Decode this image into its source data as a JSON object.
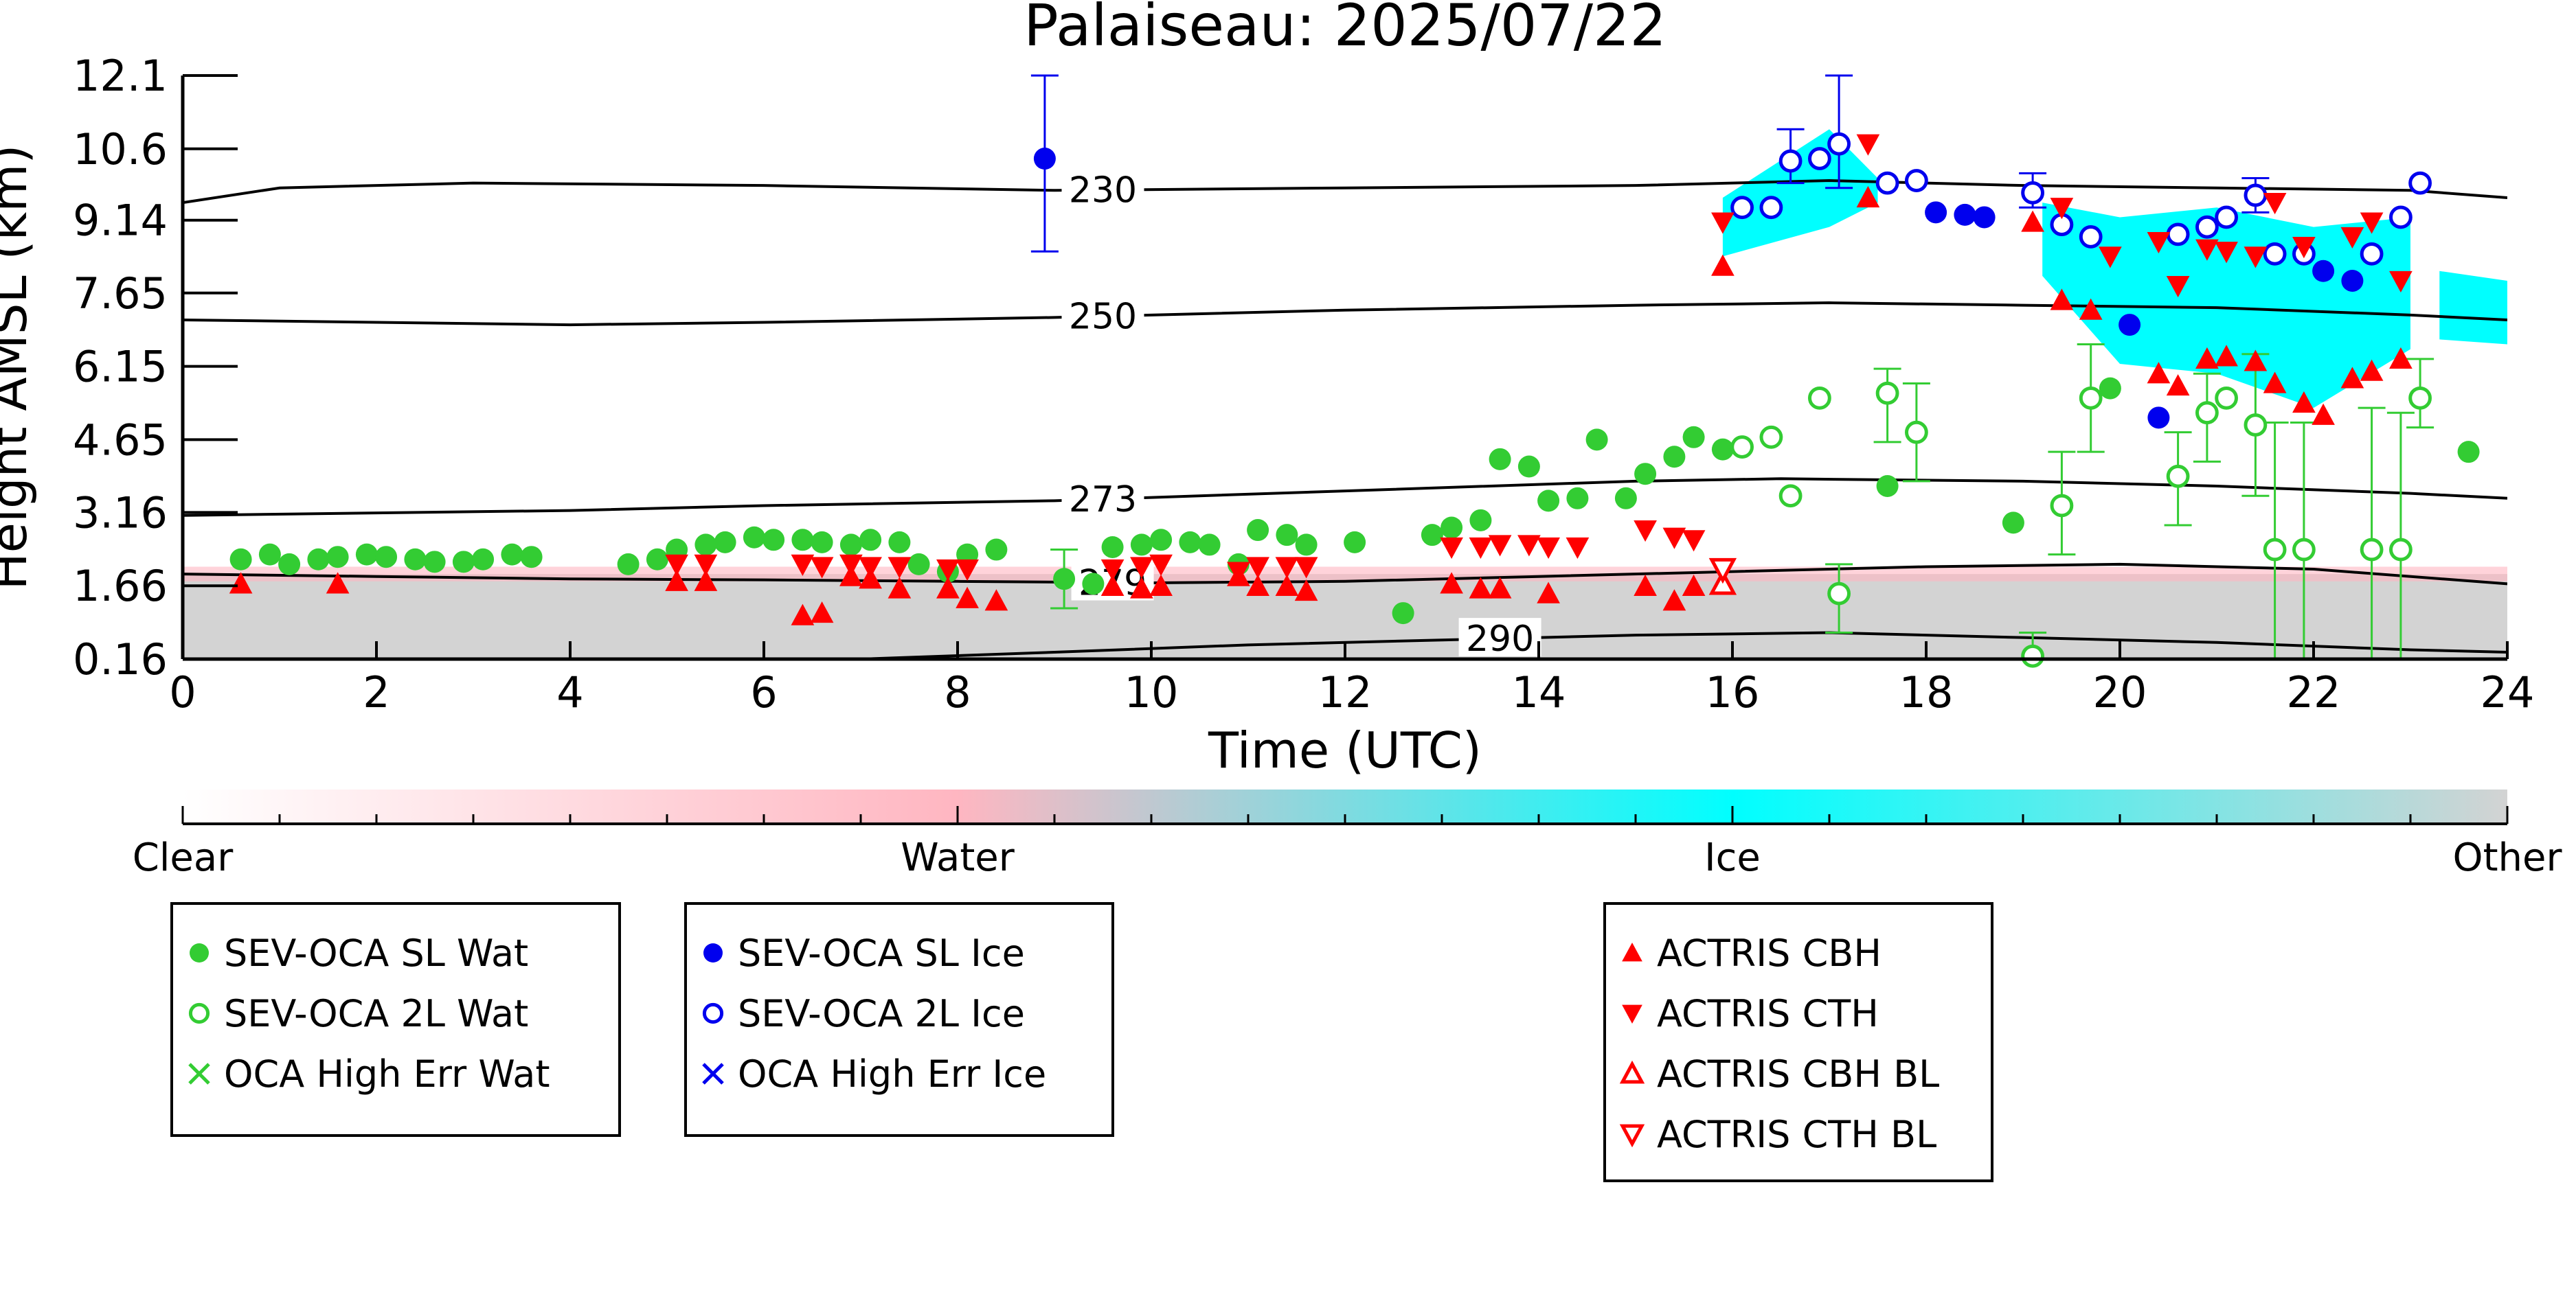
{
  "chart_data": {
    "type": "scatter",
    "title": "Palaiseau: 2025/07/22",
    "xlabel": "Time (UTC)",
    "ylabel": "Height AMSL (km)",
    "xlim": [
      0,
      24
    ],
    "ylim": [
      0.16,
      12.1
    ],
    "x_ticks": [
      "0",
      "2",
      "4",
      "6",
      "8",
      "10",
      "12",
      "14",
      "16",
      "18",
      "20",
      "22",
      "24"
    ],
    "y_ticks": [
      "0.16",
      "1.66",
      "3.16",
      "4.65",
      "6.15",
      "7.65",
      "9.14",
      "10.6",
      "12.1"
    ],
    "grid": false,
    "background_field": {
      "description_colors": {
        "clear": "#ffffff",
        "water": "#ffb6c1",
        "ice": "#00ffff",
        "other": "#d3d3d3"
      },
      "other_layer": {
        "x": [
          0,
          24
        ],
        "top": [
          1.9,
          1.9
        ]
      },
      "ice_regions": [
        {
          "x": [
            15.9,
            17.0,
            17.5
          ],
          "top": [
            9.6,
            11.0,
            10.0
          ],
          "bottom": [
            8.4,
            9.0,
            9.5
          ]
        },
        {
          "x": [
            19.2,
            20.0,
            21.0,
            22.0,
            23.0
          ],
          "top": [
            9.5,
            9.2,
            9.4,
            9.0,
            9.2
          ],
          "bottom": [
            8.0,
            6.2,
            6.0,
            5.3,
            6.5
          ]
        },
        {
          "x": [
            23.3,
            24.0
          ],
          "top": [
            8.1,
            7.9
          ],
          "bottom": [
            6.7,
            6.6
          ]
        }
      ]
    },
    "contours": [
      {
        "label": "230",
        "label_x": 9.5,
        "x": [
          0,
          1,
          3,
          6,
          9,
          12,
          15,
          17,
          19,
          21,
          23,
          24
        ],
        "y": [
          9.5,
          9.8,
          9.9,
          9.85,
          9.75,
          9.8,
          9.85,
          9.95,
          9.85,
          9.8,
          9.75,
          9.6
        ]
      },
      {
        "label": "250",
        "label_x": 9.5,
        "x": [
          0,
          2,
          4,
          6,
          9,
          12,
          15,
          17,
          19,
          21,
          23,
          24
        ],
        "y": [
          7.1,
          7.05,
          7.0,
          7.05,
          7.15,
          7.3,
          7.4,
          7.45,
          7.4,
          7.35,
          7.2,
          7.1
        ]
      },
      {
        "label": "273",
        "label_x": 9.5,
        "x": [
          0,
          2,
          4,
          6,
          9,
          12,
          15,
          16.5,
          19,
          21,
          23,
          24
        ],
        "y": [
          3.1,
          3.15,
          3.2,
          3.3,
          3.4,
          3.6,
          3.8,
          3.85,
          3.8,
          3.7,
          3.55,
          3.45
        ]
      },
      {
        "label": "279",
        "label_x": 9.6,
        "x": [
          0,
          2,
          4,
          6,
          8,
          10,
          12,
          14,
          16,
          18,
          20,
          22,
          24
        ],
        "y": [
          1.9,
          1.85,
          1.8,
          1.78,
          1.75,
          1.72,
          1.75,
          1.85,
          1.95,
          2.05,
          2.1,
          2.0,
          1.7
        ]
      },
      {
        "label": "290",
        "label_x": 13.6,
        "x": [
          7.0,
          9,
          11,
          13,
          15,
          17,
          19,
          21,
          23,
          24
        ],
        "y": [
          0.16,
          0.3,
          0.45,
          0.55,
          0.65,
          0.7,
          0.6,
          0.5,
          0.35,
          0.3
        ]
      }
    ],
    "series": [
      {
        "name": "SEV-OCA SL Wat",
        "marker": "circle-filled",
        "color": "#33cc33",
        "points": [
          [
            0.6,
            2.2
          ],
          [
            0.9,
            2.3
          ],
          [
            1.1,
            2.1
          ],
          [
            1.4,
            2.2
          ],
          [
            1.6,
            2.25
          ],
          [
            1.9,
            2.3
          ],
          [
            2.1,
            2.25
          ],
          [
            2.4,
            2.2
          ],
          [
            2.6,
            2.15
          ],
          [
            2.9,
            2.15
          ],
          [
            3.1,
            2.2
          ],
          [
            3.4,
            2.3
          ],
          [
            3.6,
            2.25
          ],
          [
            4.6,
            2.1
          ],
          [
            4.9,
            2.2
          ],
          [
            5.1,
            2.4
          ],
          [
            5.4,
            2.5
          ],
          [
            5.6,
            2.55
          ],
          [
            5.9,
            2.65
          ],
          [
            6.1,
            2.6
          ],
          [
            6.4,
            2.6
          ],
          [
            6.6,
            2.55
          ],
          [
            6.9,
            2.5
          ],
          [
            7.1,
            2.6
          ],
          [
            7.4,
            2.55
          ],
          [
            7.6,
            2.1
          ],
          [
            7.9,
            1.95
          ],
          [
            8.1,
            2.3
          ],
          [
            8.4,
            2.4
          ],
          [
            9.1,
            1.8
          ],
          [
            9.4,
            1.7
          ],
          [
            9.6,
            2.45
          ],
          [
            9.9,
            2.5
          ],
          [
            10.1,
            2.6
          ],
          [
            10.4,
            2.55
          ],
          [
            10.6,
            2.5
          ],
          [
            10.9,
            2.1
          ],
          [
            11.1,
            2.8
          ],
          [
            11.4,
            2.7
          ],
          [
            11.6,
            2.5
          ],
          [
            12.1,
            2.55
          ],
          [
            12.6,
            1.1
          ],
          [
            12.9,
            2.7
          ],
          [
            13.1,
            2.85
          ],
          [
            13.4,
            3.0
          ],
          [
            13.6,
            4.25
          ],
          [
            13.9,
            4.1
          ],
          [
            14.1,
            3.4
          ],
          [
            14.4,
            3.45
          ],
          [
            14.6,
            4.65
          ],
          [
            14.9,
            3.45
          ],
          [
            15.1,
            3.95
          ],
          [
            15.4,
            4.3
          ],
          [
            15.6,
            4.7
          ],
          [
            15.9,
            4.45
          ],
          [
            17.6,
            3.7
          ],
          [
            18.9,
            2.95
          ],
          [
            19.9,
            5.7
          ],
          [
            23.6,
            4.4
          ]
        ]
      },
      {
        "name": "SEV-OCA 2L Wat",
        "marker": "circle-open",
        "color": "#33cc33",
        "points": [
          [
            16.1,
            4.5
          ],
          [
            16.4,
            4.7
          ],
          [
            16.6,
            3.5
          ],
          [
            16.9,
            5.5
          ],
          [
            17.1,
            1.5
          ],
          [
            17.6,
            5.6
          ],
          [
            17.9,
            4.8
          ],
          [
            19.1,
            0.22
          ],
          [
            19.4,
            3.3
          ],
          [
            19.7,
            5.5
          ],
          [
            20.6,
            3.9
          ],
          [
            20.9,
            5.2
          ],
          [
            21.1,
            5.5
          ],
          [
            21.4,
            4.95
          ],
          [
            21.6,
            2.4
          ],
          [
            21.9,
            2.4
          ],
          [
            22.6,
            2.4
          ],
          [
            22.9,
            2.4
          ],
          [
            23.1,
            5.5
          ]
        ]
      },
      {
        "name": "OCA High Err Wat",
        "marker": "cross",
        "color": "#33cc33",
        "points": []
      },
      {
        "name": "SEV-OCA SL Ice",
        "marker": "circle-filled",
        "color": "#0000ee",
        "points": [
          [
            8.9,
            10.4
          ],
          [
            18.1,
            9.3
          ],
          [
            18.4,
            9.25
          ],
          [
            18.6,
            9.2
          ],
          [
            20.1,
            7.0
          ],
          [
            20.4,
            5.1
          ],
          [
            22.1,
            8.1
          ],
          [
            22.4,
            7.9
          ]
        ]
      },
      {
        "name": "SEV-OCA 2L Ice",
        "marker": "circle-open",
        "color": "#0000ee",
        "points": [
          [
            16.1,
            9.4
          ],
          [
            16.4,
            9.4
          ],
          [
            16.6,
            10.35
          ],
          [
            16.9,
            10.4
          ],
          [
            17.1,
            10.7
          ],
          [
            17.6,
            9.9
          ],
          [
            17.9,
            9.95
          ],
          [
            19.1,
            9.7
          ],
          [
            19.4,
            9.05
          ],
          [
            19.7,
            8.8
          ],
          [
            20.6,
            8.85
          ],
          [
            20.9,
            9.0
          ],
          [
            21.1,
            9.2
          ],
          [
            21.4,
            9.65
          ],
          [
            21.6,
            8.45
          ],
          [
            21.9,
            8.45
          ],
          [
            22.6,
            8.45
          ],
          [
            22.9,
            9.2
          ],
          [
            23.1,
            9.9
          ]
        ]
      },
      {
        "name": "OCA High Err Ice",
        "marker": "cross",
        "color": "#0000ee",
        "points": []
      },
      {
        "name": "ACTRIS CBH",
        "marker": "triangle-up-filled",
        "color": "#ff0000",
        "points": [
          [
            0.6,
            1.7
          ],
          [
            1.6,
            1.7
          ],
          [
            5.1,
            1.75
          ],
          [
            5.4,
            1.75
          ],
          [
            6.4,
            1.05
          ],
          [
            6.6,
            1.1
          ],
          [
            6.9,
            1.85
          ],
          [
            7.1,
            1.8
          ],
          [
            7.4,
            1.6
          ],
          [
            7.9,
            1.6
          ],
          [
            8.1,
            1.4
          ],
          [
            8.4,
            1.35
          ],
          [
            9.6,
            1.65
          ],
          [
            9.9,
            1.6
          ],
          [
            10.1,
            1.65
          ],
          [
            10.9,
            1.85
          ],
          [
            11.1,
            1.65
          ],
          [
            11.4,
            1.65
          ],
          [
            11.6,
            1.55
          ],
          [
            13.1,
            1.7
          ],
          [
            13.4,
            1.6
          ],
          [
            13.6,
            1.6
          ],
          [
            14.1,
            1.5
          ],
          [
            15.1,
            1.65
          ],
          [
            15.4,
            1.35
          ],
          [
            15.6,
            1.65
          ],
          [
            15.9,
            8.2
          ],
          [
            17.4,
            9.6
          ],
          [
            19.1,
            9.1
          ],
          [
            19.4,
            7.5
          ],
          [
            19.7,
            7.3
          ],
          [
            20.4,
            6.0
          ],
          [
            20.6,
            5.75
          ],
          [
            20.9,
            6.3
          ],
          [
            21.1,
            6.35
          ],
          [
            21.4,
            6.25
          ],
          [
            21.6,
            5.8
          ],
          [
            21.9,
            5.4
          ],
          [
            22.1,
            5.15
          ],
          [
            22.4,
            5.9
          ],
          [
            22.6,
            6.05
          ],
          [
            22.9,
            6.3
          ]
        ]
      },
      {
        "name": "ACTRIS CTH",
        "marker": "triangle-down-filled",
        "color": "#ff0000",
        "points": [
          [
            5.1,
            2.1
          ],
          [
            5.4,
            2.1
          ],
          [
            6.4,
            2.1
          ],
          [
            6.6,
            2.05
          ],
          [
            6.9,
            2.1
          ],
          [
            7.1,
            2.05
          ],
          [
            7.4,
            2.05
          ],
          [
            7.9,
            2.0
          ],
          [
            8.1,
            2.0
          ],
          [
            9.6,
            2.0
          ],
          [
            9.9,
            2.05
          ],
          [
            10.1,
            2.1
          ],
          [
            10.9,
            1.95
          ],
          [
            11.1,
            2.05
          ],
          [
            11.4,
            2.05
          ],
          [
            11.6,
            2.05
          ],
          [
            13.1,
            2.45
          ],
          [
            13.4,
            2.45
          ],
          [
            13.6,
            2.5
          ],
          [
            13.9,
            2.5
          ],
          [
            14.1,
            2.45
          ],
          [
            14.4,
            2.45
          ],
          [
            15.1,
            2.8
          ],
          [
            15.4,
            2.65
          ],
          [
            15.6,
            2.6
          ],
          [
            15.9,
            9.1
          ],
          [
            17.4,
            10.7
          ],
          [
            19.4,
            9.4
          ],
          [
            19.9,
            8.4
          ],
          [
            20.4,
            8.7
          ],
          [
            20.6,
            7.8
          ],
          [
            20.9,
            8.55
          ],
          [
            21.1,
            8.5
          ],
          [
            21.4,
            8.4
          ],
          [
            21.6,
            9.5
          ],
          [
            21.9,
            8.6
          ],
          [
            22.4,
            8.8
          ],
          [
            22.6,
            9.1
          ],
          [
            22.9,
            7.9
          ]
        ]
      },
      {
        "name": "ACTRIS CBH BL",
        "marker": "triangle-up-open",
        "color": "#ff0000",
        "points": [
          [
            15.9,
            1.7
          ]
        ]
      },
      {
        "name": "ACTRIS CTH BL",
        "marker": "triangle-down-open",
        "color": "#ff0000",
        "points": [
          [
            15.9,
            2.0
          ]
        ]
      }
    ],
    "errorbars": [
      {
        "series": "SEV-OCA SL Ice",
        "x": 8.9,
        "ylow": 8.5,
        "yhigh": 12.1
      },
      {
        "series": "SEV-OCA 2L Ice",
        "x": 17.1,
        "ylow": 9.8,
        "yhigh": 12.1
      },
      {
        "series": "SEV-OCA 2L Ice",
        "x": 16.6,
        "ylow": 9.9,
        "yhigh": 11.0
      },
      {
        "series": "SEV-OCA 2L Ice",
        "x": 19.1,
        "ylow": 9.4,
        "yhigh": 10.1
      },
      {
        "series": "SEV-OCA 2L Ice",
        "x": 21.4,
        "ylow": 9.3,
        "yhigh": 10.0
      },
      {
        "series": "SEV-OCA 2L Wat",
        "x": 17.6,
        "ylow": 4.6,
        "yhigh": 6.1
      },
      {
        "series": "SEV-OCA 2L Wat",
        "x": 17.9,
        "ylow": 3.8,
        "yhigh": 5.8
      },
      {
        "series": "SEV-OCA 2L Wat",
        "x": 17.1,
        "ylow": 0.7,
        "yhigh": 2.1
      },
      {
        "series": "SEV-OCA 2L Wat",
        "x": 19.4,
        "ylow": 2.3,
        "yhigh": 4.4
      },
      {
        "series": "SEV-OCA 2L Wat",
        "x": 19.7,
        "ylow": 4.4,
        "yhigh": 6.6
      },
      {
        "series": "SEV-OCA 2L Wat",
        "x": 20.6,
        "ylow": 2.9,
        "yhigh": 4.8
      },
      {
        "series": "SEV-OCA 2L Wat",
        "x": 20.9,
        "ylow": 4.2,
        "yhigh": 6.0
      },
      {
        "series": "SEV-OCA 2L Wat",
        "x": 21.4,
        "ylow": 3.5,
        "yhigh": 6.4
      },
      {
        "series": "SEV-OCA 2L Wat",
        "x": 21.6,
        "ylow": 0.16,
        "yhigh": 5.0
      },
      {
        "series": "SEV-OCA 2L Wat",
        "x": 21.9,
        "ylow": 0.16,
        "yhigh": 5.0
      },
      {
        "series": "SEV-OCA 2L Wat",
        "x": 22.6,
        "ylow": 0.16,
        "yhigh": 5.3
      },
      {
        "series": "SEV-OCA 2L Wat",
        "x": 22.9,
        "ylow": 0.16,
        "yhigh": 5.2
      },
      {
        "series": "SEV-OCA 2L Wat",
        "x": 23.1,
        "ylow": 4.9,
        "yhigh": 6.3
      },
      {
        "series": "SEV-OCA 2L Wat",
        "x": 19.1,
        "ylow": 0.16,
        "yhigh": 0.7
      },
      {
        "series": "SEV-OCA SL Wat",
        "x": 9.1,
        "ylow": 1.2,
        "yhigh": 2.4
      }
    ],
    "colorbar": {
      "labels": [
        "Clear",
        "Water",
        "Ice",
        "Other"
      ],
      "colors": [
        "#ffffff",
        "#ffb6c1",
        "#00ffff",
        "#d3d3d3"
      ]
    },
    "legend_groups": [
      [
        "SEV-OCA SL Wat",
        "SEV-OCA 2L Wat",
        "OCA High Err Wat"
      ],
      [
        "SEV-OCA SL Ice",
        "SEV-OCA 2L Ice",
        "OCA High Err Ice"
      ],
      [
        "ACTRIS CBH",
        "ACTRIS CTH",
        "ACTRIS CBH BL",
        "ACTRIS CTH BL"
      ]
    ]
  }
}
